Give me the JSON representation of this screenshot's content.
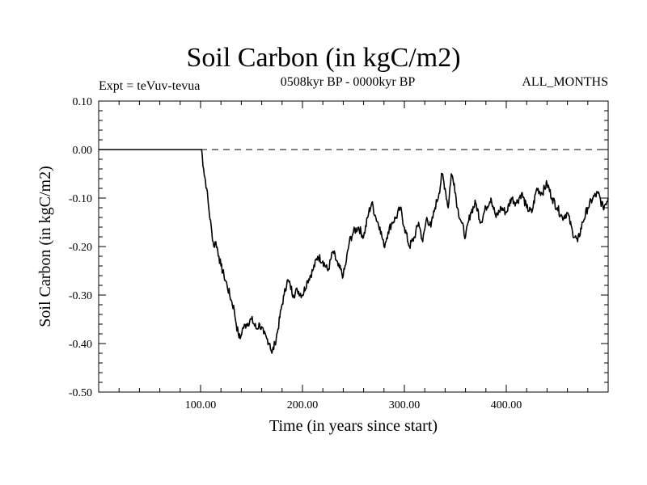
{
  "header": {
    "title": "Soil Carbon (in kgC/m2)",
    "subtitle": "0508kyr BP - 0000kyr BP",
    "experiment": "Expt = teVuv-tevua",
    "months": "ALL_MONTHS"
  },
  "chart_data": {
    "type": "line",
    "title": "Soil Carbon (in kgC/m2)",
    "xlabel": "Time (in years since start)",
    "ylabel": "Soil Carbon (in kgC/m2)",
    "xlim": [
      0,
      500
    ],
    "ylim": [
      -0.5,
      0.1
    ],
    "x_ticks": [
      100,
      200,
      300,
      400
    ],
    "x_tick_labels": [
      "100.00",
      "200.00",
      "300.00",
      "400.00"
    ],
    "y_ticks": [
      0.1,
      0.0,
      -0.1,
      -0.2,
      -0.3,
      -0.4,
      -0.5
    ],
    "y_tick_labels": [
      "0.10",
      "0.00",
      "-0.10",
      "-0.20",
      "-0.30",
      "-0.40",
      "-0.50"
    ],
    "reference_line": {
      "y": 0.0,
      "style": "dashed"
    },
    "grid": false,
    "series": [
      {
        "x": [
          0,
          100,
          101,
          103,
          106,
          108,
          111,
          113,
          115,
          118,
          120,
          123,
          126,
          130,
          133,
          135,
          137,
          139,
          141,
          145,
          150,
          155,
          158,
          162,
          165,
          168,
          170,
          173,
          176,
          179,
          182,
          185,
          188,
          191,
          195,
          200,
          205,
          210,
          215,
          220,
          225,
          230,
          235,
          240,
          243,
          246,
          250,
          255,
          260,
          265,
          268,
          272,
          276,
          280,
          284,
          288,
          292,
          296,
          300,
          305,
          310,
          314,
          318,
          322,
          326,
          330,
          334,
          337,
          340,
          343,
          346,
          349,
          352,
          356,
          360,
          365,
          370,
          375,
          380,
          385,
          390,
          395,
          400,
          405,
          410,
          415,
          420,
          425,
          430,
          435,
          440,
          445,
          450,
          455,
          460,
          465,
          470,
          475,
          480,
          485,
          490,
          495,
          500
        ],
        "y": [
          0.0,
          0.0,
          0.0,
          -0.04,
          -0.08,
          -0.12,
          -0.17,
          -0.2,
          -0.19,
          -0.22,
          -0.24,
          -0.26,
          -0.28,
          -0.31,
          -0.33,
          -0.36,
          -0.38,
          -0.39,
          -0.37,
          -0.36,
          -0.35,
          -0.37,
          -0.36,
          -0.38,
          -0.39,
          -0.4,
          -0.42,
          -0.4,
          -0.37,
          -0.33,
          -0.3,
          -0.27,
          -0.28,
          -0.3,
          -0.29,
          -0.3,
          -0.27,
          -0.25,
          -0.22,
          -0.23,
          -0.25,
          -0.21,
          -0.24,
          -0.26,
          -0.23,
          -0.19,
          -0.17,
          -0.16,
          -0.18,
          -0.13,
          -0.11,
          -0.14,
          -0.16,
          -0.2,
          -0.17,
          -0.15,
          -0.14,
          -0.12,
          -0.16,
          -0.2,
          -0.18,
          -0.15,
          -0.19,
          -0.14,
          -0.16,
          -0.12,
          -0.09,
          -0.05,
          -0.08,
          -0.12,
          -0.05,
          -0.07,
          -0.12,
          -0.15,
          -0.18,
          -0.13,
          -0.11,
          -0.15,
          -0.12,
          -0.1,
          -0.14,
          -0.12,
          -0.13,
          -0.1,
          -0.11,
          -0.09,
          -0.12,
          -0.13,
          -0.08,
          -0.09,
          -0.07,
          -0.1,
          -0.12,
          -0.14,
          -0.13,
          -0.17,
          -0.19,
          -0.15,
          -0.12,
          -0.1,
          -0.09,
          -0.12,
          -0.1
        ]
      }
    ]
  }
}
